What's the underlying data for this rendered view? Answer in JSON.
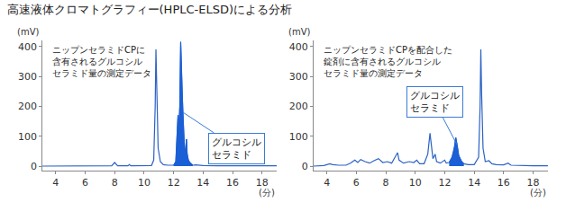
{
  "title": "高速液体クロマトグラフィー(HPLC-ELSD)による分析",
  "chart_data": [
    {
      "type": "line",
      "title": "ニップンセラミドCPに\n含有されるグルコシル\nセラミド量の測定データ",
      "callout": "グルコシル\nセラミド",
      "xlabel": "(分)",
      "ylabel": "(mV)",
      "x": [
        3.1,
        4,
        5,
        6,
        7,
        7.8,
        8.0,
        8.2,
        8.9,
        9.0,
        9.1,
        10.0,
        10.5,
        10.65,
        10.75,
        10.8,
        10.85,
        10.95,
        11.1,
        11.3,
        11.6,
        12.0,
        12.15,
        12.25,
        12.3,
        12.35,
        12.42,
        12.48,
        12.53,
        12.58,
        12.63,
        12.7,
        12.75,
        12.82,
        12.87,
        12.92,
        13.0,
        13.1,
        13.2,
        13.3,
        13.5,
        14.0,
        15,
        16,
        17,
        18,
        19
      ],
      "series": [
        {
          "type": "line",
          "color": "#2a62c4",
          "values": [
            0,
            0,
            0,
            0,
            0,
            1,
            12,
            1,
            1,
            5,
            1,
            1,
            2,
            20,
            200,
            390,
            250,
            60,
            15,
            5,
            3,
            3,
            15,
            120,
            170,
            110,
            200,
            415,
            300,
            250,
            180,
            70,
            40,
            60,
            90,
            40,
            20,
            12,
            6,
            3,
            4,
            2,
            1,
            1,
            1,
            1,
            1
          ]
        },
        {
          "type": "area",
          "color": "#1a5fd6",
          "values": [
            null,
            null,
            null,
            null,
            null,
            null,
            null,
            null,
            null,
            null,
            null,
            null,
            null,
            null,
            null,
            null,
            null,
            null,
            null,
            null,
            null,
            3,
            15,
            120,
            170,
            110,
            200,
            415,
            300,
            250,
            180,
            70,
            40,
            60,
            90,
            40,
            20,
            12,
            6,
            3,
            null,
            null,
            null,
            null,
            null,
            null,
            null
          ]
        }
      ],
      "xlim": [
        3.1,
        19.0
      ],
      "ylim": [
        -15,
        420
      ],
      "xticks": [
        4,
        6,
        8,
        10,
        12,
        14,
        16,
        18
      ],
      "yticks": [
        0,
        100,
        200,
        300,
        400
      ],
      "grid": false
    },
    {
      "type": "line",
      "title": "ニップンセラミドCPを配合した\n錠剤に含有されるグルコシル\nセラミド量の測定データ",
      "callout": "グルコシル\nセラミド",
      "xlabel": "(分)",
      "ylabel": "(mV)",
      "x": [
        3.1,
        3.8,
        4.2,
        4.4,
        4.8,
        5.3,
        5.6,
        5.9,
        6.1,
        6.3,
        6.6,
        6.9,
        7.2,
        7.5,
        7.8,
        8.1,
        8.4,
        8.7,
        8.8,
        8.9,
        9.2,
        9.6,
        9.9,
        10.1,
        10.3,
        10.6,
        10.85,
        11.0,
        11.1,
        11.2,
        11.35,
        11.45,
        11.7,
        12.0,
        12.1,
        12.3,
        12.5,
        12.65,
        12.75,
        12.85,
        12.95,
        13.05,
        13.15,
        13.3,
        13.6,
        14.0,
        14.3,
        14.4,
        14.45,
        14.5,
        14.6,
        14.75,
        15.0,
        15.2,
        15.5,
        16.0,
        16.3,
        16.5,
        17,
        18,
        19
      ],
      "series": [
        {
          "type": "line",
          "color": "#2a62c4",
          "values": [
            0,
            2,
            8,
            5,
            3,
            3,
            10,
            20,
            12,
            22,
            15,
            10,
            18,
            25,
            12,
            15,
            10,
            35,
            45,
            20,
            10,
            15,
            12,
            20,
            8,
            8,
            40,
            110,
            60,
            25,
            40,
            15,
            10,
            20,
            10,
            12,
            30,
            60,
            95,
            70,
            35,
            25,
            15,
            8,
            5,
            5,
            30,
            200,
            390,
            250,
            60,
            15,
            18,
            8,
            5,
            4,
            10,
            3,
            2,
            1,
            1
          ]
        },
        {
          "type": "area",
          "color": "#1a5fd6",
          "values": [
            null,
            null,
            null,
            null,
            null,
            null,
            null,
            null,
            null,
            null,
            null,
            null,
            null,
            null,
            null,
            null,
            null,
            null,
            null,
            null,
            null,
            null,
            null,
            null,
            null,
            null,
            null,
            null,
            null,
            null,
            null,
            null,
            null,
            null,
            null,
            12,
            30,
            60,
            95,
            70,
            35,
            25,
            15,
            8,
            null,
            null,
            null,
            null,
            null,
            null,
            null,
            null,
            null,
            null,
            null,
            null,
            null,
            null,
            null,
            null,
            null
          ]
        }
      ],
      "xlim": [
        3.1,
        19.0
      ],
      "ylim": [
        -15,
        420
      ],
      "xticks": [
        4,
        6,
        8,
        10,
        12,
        14,
        16,
        18
      ],
      "yticks": [
        0,
        100,
        200,
        300,
        400
      ],
      "grid": false
    }
  ]
}
